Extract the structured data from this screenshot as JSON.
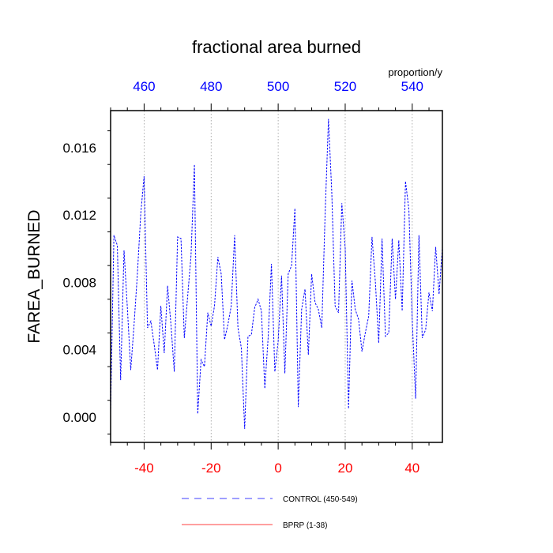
{
  "chart_data": {
    "type": "line",
    "title": "fractional area burned",
    "units_label": "proportion/y",
    "ylabel": "FAREA_BURNED",
    "xlabel": "",
    "xlim": [
      -50,
      49
    ],
    "ylim": [
      -0.0015,
      0.0182
    ],
    "grid": "vertical dotted lines at x ticks",
    "bottom_axis": {
      "ticks": [
        -40,
        -20,
        0,
        20,
        40
      ],
      "labels": [
        "-40",
        "-20",
        "0",
        "20",
        "40"
      ],
      "color": "#ff0000"
    },
    "top_axis": {
      "ticks": [
        -40,
        -20,
        0,
        20,
        40
      ],
      "labels": [
        "460",
        "480",
        "500",
        "520",
        "540"
      ],
      "color": "#0000ff"
    },
    "left_axis": {
      "ticks": [
        0.0,
        0.004,
        0.008,
        0.012,
        0.016
      ],
      "labels": [
        "0.000",
        "0.004",
        "0.008",
        "0.012",
        "0.016"
      ]
    },
    "legend_position": "bottom-center",
    "series": [
      {
        "name": "CONTROL (450-549)",
        "color": "#0000ff",
        "dash": "dashed",
        "x": [
          -50,
          -49,
          -48,
          -47,
          -46,
          -45,
          -44,
          -43,
          -42,
          -41,
          -40,
          -39,
          -38,
          -37,
          -36,
          -35,
          -34,
          -33,
          -32,
          -31,
          -30,
          -29,
          -28,
          -27,
          -26,
          -25,
          -24,
          -23,
          -22,
          -21,
          -20,
          -19,
          -18,
          -17,
          -16,
          -15,
          -14,
          -13,
          -12,
          -11,
          -10,
          -9,
          -8,
          -7,
          -6,
          -5,
          -4,
          -3,
          -2,
          -1,
          0,
          1,
          2,
          3,
          4,
          5,
          6,
          7,
          8,
          9,
          10,
          11,
          12,
          13,
          14,
          15,
          16,
          17,
          18,
          19,
          20,
          21,
          22,
          23,
          24,
          25,
          26,
          27,
          28,
          29,
          30,
          31,
          32,
          33,
          34,
          35,
          36,
          37,
          38,
          39,
          40,
          41,
          42,
          43,
          44,
          45,
          46,
          47,
          48,
          49
        ],
        "y": [
          0.0003,
          0.0108,
          0.0102,
          0.0022,
          0.0099,
          0.0065,
          0.0028,
          0.0055,
          0.0085,
          0.0121,
          0.0143,
          0.0053,
          0.0057,
          0.0043,
          0.0028,
          0.0066,
          0.0038,
          0.0078,
          0.0055,
          0.0027,
          0.0107,
          0.0106,
          0.0047,
          0.0072,
          0.0096,
          0.015,
          0.0002,
          0.0034,
          0.003,
          0.0062,
          0.0054,
          0.0066,
          0.0095,
          0.0085,
          0.0046,
          0.0055,
          0.0066,
          0.0108,
          0.0053,
          0.0041,
          -0.0007,
          0.0048,
          0.0049,
          0.0065,
          0.007,
          0.0063,
          0.0017,
          0.0047,
          0.0091,
          0.0027,
          0.0045,
          0.0084,
          0.0026,
          0.0085,
          0.009,
          0.0124,
          0.0006,
          0.0064,
          0.0076,
          0.0037,
          0.0085,
          0.0068,
          0.0064,
          0.0053,
          0.012,
          0.0177,
          0.0133,
          0.0066,
          0.0062,
          0.0127,
          0.01,
          0.0005,
          0.0081,
          0.0064,
          0.0058,
          0.0039,
          0.005,
          0.006,
          0.0107,
          0.008,
          0.0044,
          0.0106,
          0.0048,
          0.005,
          0.0106,
          0.007,
          0.0105,
          0.0063,
          0.014,
          0.0123,
          0.0058,
          0.0011,
          0.0108,
          0.0047,
          0.0052,
          0.0074,
          0.0063,
          0.0101,
          0.0073,
          0.0101
        ]
      },
      {
        "name": "BPRP (1-38)",
        "color": "#ff0000",
        "dash": "solid",
        "x": [],
        "y": []
      }
    ]
  }
}
